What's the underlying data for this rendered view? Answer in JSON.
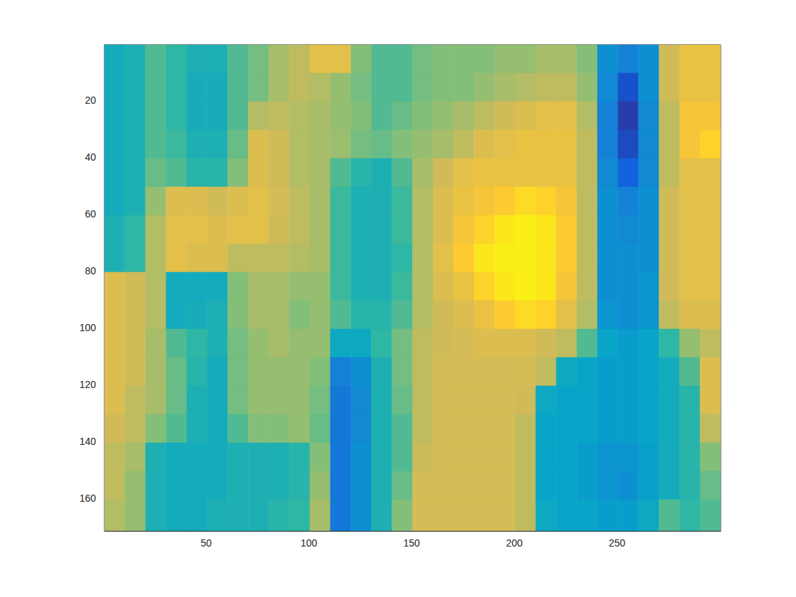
{
  "chart_data": {
    "type": "heatmap",
    "x_edges": [
      0.5,
      10.5,
      20.5,
      30.5,
      40.5,
      50.5,
      60.5,
      70.5,
      80.5,
      90.5,
      100.5,
      110.5,
      120.5,
      130.5,
      140.5,
      150.5,
      160.5,
      170.5,
      180.5,
      190.5,
      200.5,
      210.5,
      220.5,
      230.5,
      240.5,
      250.5,
      260.5,
      270.5,
      280.5,
      290.5,
      300.5
    ],
    "y_edges": [
      0.5,
      10.5,
      20.5,
      30.5,
      40.5,
      50.5,
      60.5,
      70.5,
      80.5,
      90.5,
      100.5,
      110.5,
      120.5,
      130.5,
      140.5,
      150.5,
      160.5,
      171.5
    ],
    "cells": [
      [
        0.42,
        0.45,
        0.55,
        0.5,
        0.45,
        0.45,
        0.55,
        0.6,
        0.68,
        0.72,
        0.8,
        0.8,
        0.62,
        0.55,
        0.55,
        0.6,
        0.62,
        0.62,
        0.62,
        0.65,
        0.65,
        0.68,
        0.68,
        0.62,
        0.3,
        0.25,
        0.3,
        0.75,
        0.82,
        0.82
      ],
      [
        0.42,
        0.45,
        0.55,
        0.5,
        0.43,
        0.43,
        0.55,
        0.6,
        0.68,
        0.72,
        0.7,
        0.65,
        0.6,
        0.55,
        0.55,
        0.6,
        0.62,
        0.62,
        0.65,
        0.68,
        0.7,
        0.72,
        0.72,
        0.65,
        0.28,
        0.1,
        0.3,
        0.75,
        0.82,
        0.82
      ],
      [
        0.42,
        0.45,
        0.55,
        0.5,
        0.43,
        0.43,
        0.55,
        0.7,
        0.72,
        0.7,
        0.68,
        0.65,
        0.62,
        0.55,
        0.58,
        0.62,
        0.65,
        0.68,
        0.72,
        0.75,
        0.78,
        0.8,
        0.8,
        0.7,
        0.25,
        0.05,
        0.28,
        0.72,
        0.85,
        0.85
      ],
      [
        0.42,
        0.45,
        0.55,
        0.52,
        0.45,
        0.45,
        0.58,
        0.78,
        0.75,
        0.7,
        0.68,
        0.66,
        0.6,
        0.58,
        0.62,
        0.65,
        0.68,
        0.72,
        0.78,
        0.8,
        0.82,
        0.82,
        0.82,
        0.72,
        0.25,
        0.08,
        0.28,
        0.72,
        0.85,
        0.9
      ],
      [
        0.42,
        0.45,
        0.58,
        0.55,
        0.48,
        0.48,
        0.62,
        0.78,
        0.75,
        0.7,
        0.68,
        0.55,
        0.48,
        0.45,
        0.55,
        0.68,
        0.75,
        0.8,
        0.82,
        0.82,
        0.82,
        0.82,
        0.82,
        0.72,
        0.28,
        0.15,
        0.28,
        0.72,
        0.8,
        0.8
      ],
      [
        0.42,
        0.45,
        0.65,
        0.78,
        0.78,
        0.75,
        0.78,
        0.8,
        0.76,
        0.72,
        0.68,
        0.52,
        0.45,
        0.45,
        0.52,
        0.7,
        0.78,
        0.82,
        0.85,
        0.88,
        0.92,
        0.9,
        0.85,
        0.72,
        0.3,
        0.25,
        0.3,
        0.75,
        0.8,
        0.8
      ],
      [
        0.45,
        0.5,
        0.7,
        0.8,
        0.8,
        0.78,
        0.8,
        0.8,
        0.75,
        0.72,
        0.68,
        0.52,
        0.45,
        0.45,
        0.52,
        0.7,
        0.78,
        0.85,
        0.9,
        0.95,
        0.97,
        0.95,
        0.88,
        0.72,
        0.3,
        0.28,
        0.3,
        0.75,
        0.8,
        0.8
      ],
      [
        0.45,
        0.5,
        0.7,
        0.8,
        0.78,
        0.78,
        0.72,
        0.72,
        0.72,
        0.7,
        0.68,
        0.52,
        0.45,
        0.45,
        0.5,
        0.7,
        0.8,
        0.88,
        0.95,
        0.97,
        0.97,
        0.95,
        0.88,
        0.72,
        0.3,
        0.3,
        0.3,
        0.75,
        0.8,
        0.8
      ],
      [
        0.78,
        0.75,
        0.7,
        0.42,
        0.42,
        0.42,
        0.62,
        0.68,
        0.68,
        0.65,
        0.65,
        0.52,
        0.45,
        0.45,
        0.52,
        0.7,
        0.78,
        0.82,
        0.9,
        0.95,
        0.97,
        0.95,
        0.85,
        0.72,
        0.3,
        0.3,
        0.32,
        0.75,
        0.8,
        0.8
      ],
      [
        0.78,
        0.75,
        0.7,
        0.42,
        0.43,
        0.45,
        0.62,
        0.68,
        0.68,
        0.62,
        0.65,
        0.55,
        0.48,
        0.48,
        0.55,
        0.7,
        0.75,
        0.78,
        0.82,
        0.88,
        0.92,
        0.9,
        0.8,
        0.7,
        0.32,
        0.3,
        0.32,
        0.72,
        0.78,
        0.78
      ],
      [
        0.78,
        0.75,
        0.68,
        0.55,
        0.5,
        0.45,
        0.6,
        0.65,
        0.68,
        0.65,
        0.65,
        0.4,
        0.4,
        0.5,
        0.6,
        0.72,
        0.75,
        0.76,
        0.78,
        0.78,
        0.78,
        0.75,
        0.72,
        0.55,
        0.38,
        0.35,
        0.38,
        0.5,
        0.65,
        0.72
      ],
      [
        0.78,
        0.75,
        0.68,
        0.58,
        0.48,
        0.42,
        0.6,
        0.65,
        0.65,
        0.65,
        0.62,
        0.25,
        0.3,
        0.45,
        0.6,
        0.72,
        0.76,
        0.76,
        0.76,
        0.76,
        0.76,
        0.72,
        0.4,
        0.38,
        0.35,
        0.35,
        0.38,
        0.42,
        0.55,
        0.78
      ],
      [
        0.78,
        0.72,
        0.68,
        0.58,
        0.45,
        0.42,
        0.6,
        0.65,
        0.65,
        0.65,
        0.6,
        0.22,
        0.28,
        0.45,
        0.58,
        0.72,
        0.76,
        0.76,
        0.76,
        0.76,
        0.75,
        0.4,
        0.38,
        0.38,
        0.35,
        0.35,
        0.38,
        0.42,
        0.48,
        0.78
      ],
      [
        0.75,
        0.72,
        0.62,
        0.55,
        0.45,
        0.42,
        0.55,
        0.62,
        0.62,
        0.65,
        0.58,
        0.22,
        0.28,
        0.45,
        0.55,
        0.72,
        0.76,
        0.76,
        0.76,
        0.76,
        0.72,
        0.38,
        0.38,
        0.38,
        0.35,
        0.35,
        0.38,
        0.42,
        0.48,
        0.72
      ],
      [
        0.72,
        0.68,
        0.45,
        0.42,
        0.42,
        0.42,
        0.45,
        0.45,
        0.45,
        0.48,
        0.62,
        0.22,
        0.3,
        0.45,
        0.55,
        0.74,
        0.76,
        0.76,
        0.76,
        0.76,
        0.72,
        0.38,
        0.38,
        0.35,
        0.32,
        0.32,
        0.36,
        0.42,
        0.48,
        0.62
      ],
      [
        0.72,
        0.65,
        0.45,
        0.42,
        0.42,
        0.42,
        0.45,
        0.45,
        0.45,
        0.48,
        0.65,
        0.22,
        0.3,
        0.45,
        0.58,
        0.76,
        0.76,
        0.76,
        0.76,
        0.76,
        0.72,
        0.38,
        0.38,
        0.35,
        0.32,
        0.3,
        0.36,
        0.42,
        0.48,
        0.58
      ],
      [
        0.7,
        0.65,
        0.45,
        0.42,
        0.42,
        0.45,
        0.45,
        0.45,
        0.48,
        0.5,
        0.68,
        0.22,
        0.3,
        0.45,
        0.62,
        0.76,
        0.76,
        0.76,
        0.76,
        0.76,
        0.72,
        0.4,
        0.38,
        0.38,
        0.35,
        0.35,
        0.4,
        0.55,
        0.5,
        0.55
      ]
    ],
    "color_range": [
      0,
      1
    ],
    "xlim": [
      0.5,
      300.5
    ],
    "ylim": [
      0.5,
      171.5
    ],
    "xticks": [
      50,
      100,
      150,
      200,
      250
    ],
    "yticks": [
      20,
      40,
      60,
      80,
      100,
      120,
      140,
      160
    ],
    "grid": false
  }
}
